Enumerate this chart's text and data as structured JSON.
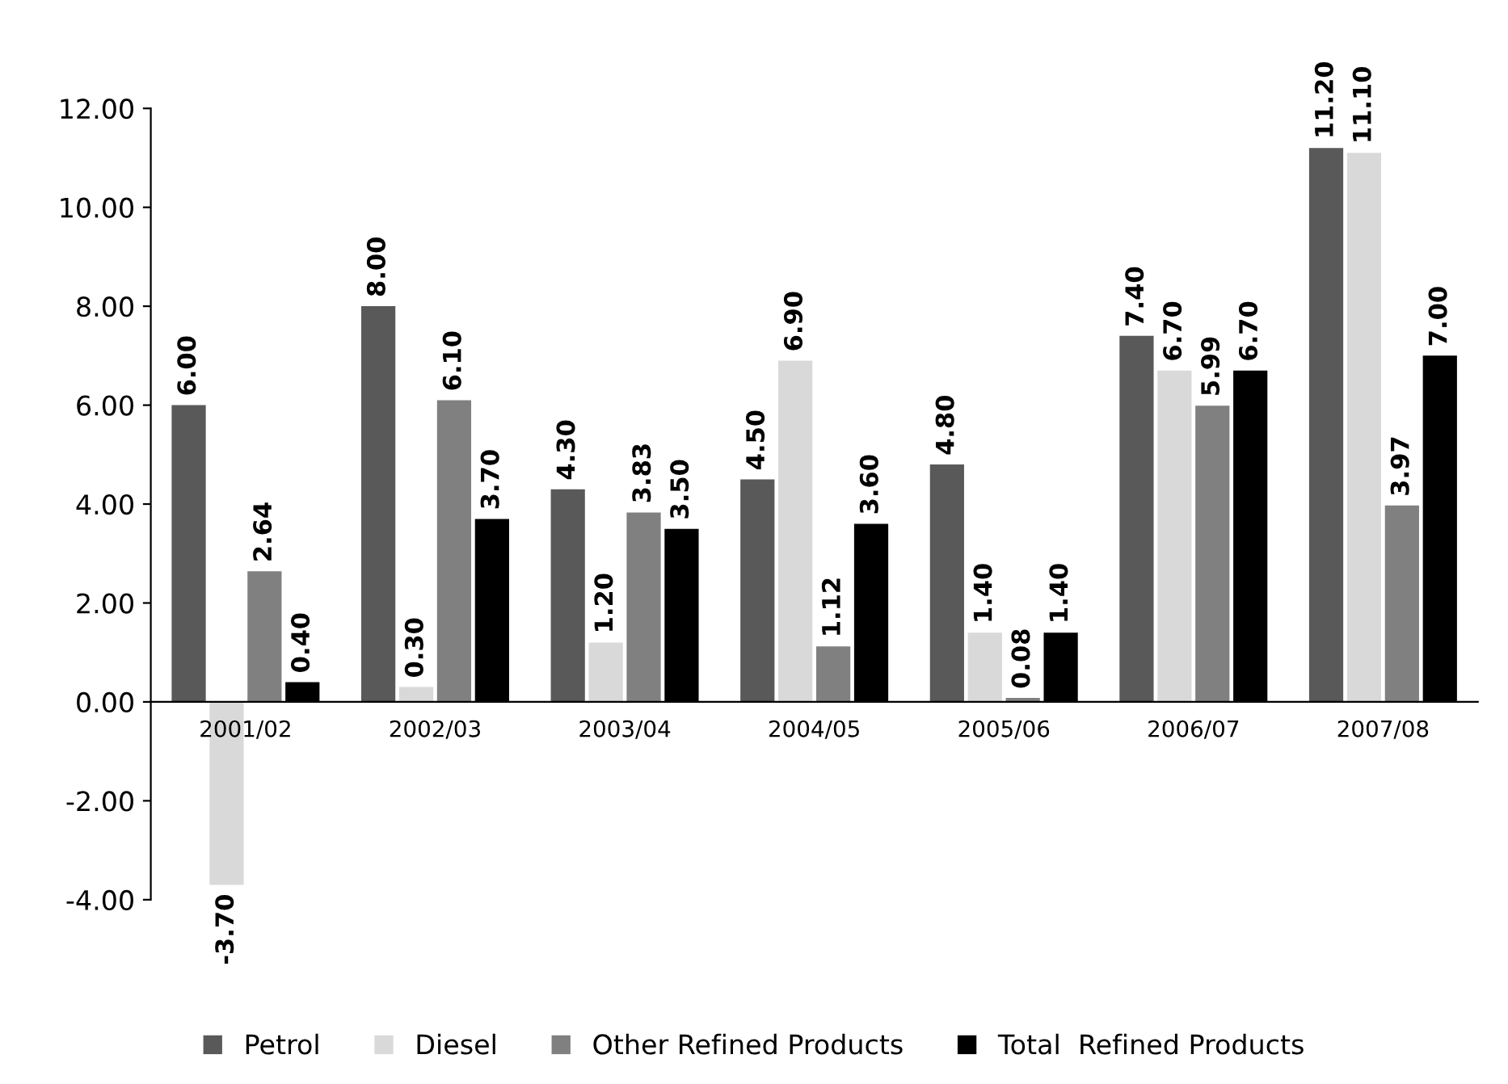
{
  "chart_data": {
    "type": "bar",
    "categories": [
      "2001/02",
      "2002/03",
      "2003/04",
      "2004/05",
      "2005/06",
      "2006/07",
      "2007/08"
    ],
    "series": [
      {
        "name": "Petrol",
        "color": "#595959",
        "values": [
          6.0,
          8.0,
          4.3,
          4.5,
          4.8,
          7.4,
          11.2
        ],
        "value_labels": [
          "6.00",
          "8.00",
          "4.30",
          "4.50",
          "4.80",
          "7.40",
          "11.20"
        ]
      },
      {
        "name": "Diesel",
        "color": "#d9d9d9",
        "values": [
          -3.7,
          0.3,
          1.2,
          6.9,
          1.4,
          6.7,
          11.1
        ],
        "value_labels": [
          "-3.70",
          "0.30",
          "1.20",
          "6.90",
          "1.40",
          "6.70",
          "11.10"
        ]
      },
      {
        "name": "Other Refined Products",
        "color": "#808080",
        "values": [
          2.64,
          6.1,
          3.83,
          1.12,
          0.08,
          5.99,
          3.97
        ],
        "value_labels": [
          "2.64",
          "6.10",
          "3.83",
          "1.12",
          "0.08",
          "5.99",
          "3.97"
        ]
      },
      {
        "name": "Total  Refined Products",
        "color": "#000000",
        "values": [
          0.4,
          3.7,
          3.5,
          3.6,
          1.4,
          6.7,
          7.0
        ],
        "value_labels": [
          "0.40",
          "3.70",
          "3.50",
          "3.60",
          "1.40",
          "6.70",
          "7.00"
        ]
      }
    ],
    "ylim": [
      -4,
      12
    ],
    "yticks": [
      {
        "value": -4,
        "label": "-4.00"
      },
      {
        "value": -2,
        "label": "-2.00"
      },
      {
        "value": 0,
        "label": "0.00"
      },
      {
        "value": 2,
        "label": "2.00"
      },
      {
        "value": 4,
        "label": "4.00"
      },
      {
        "value": 6,
        "label": "6.00"
      },
      {
        "value": 8,
        "label": "8.00"
      },
      {
        "value": 10,
        "label": "10.00"
      },
      {
        "value": 12,
        "label": "12.00"
      }
    ],
    "grid": false,
    "legend": "bottom"
  }
}
